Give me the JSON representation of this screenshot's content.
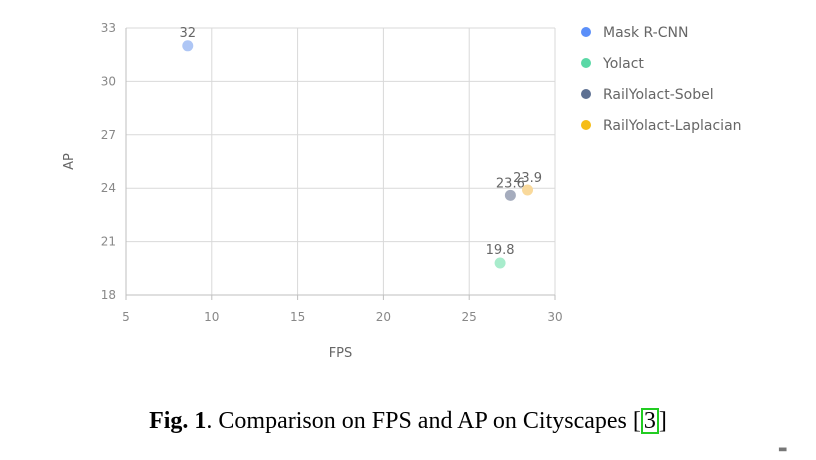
{
  "chart_data": {
    "type": "scatter",
    "title": "",
    "xlabel": "FPS",
    "ylabel": "AP",
    "xlim": [
      5,
      30
    ],
    "ylim": [
      18,
      33
    ],
    "xticks": [
      5,
      10,
      15,
      20,
      25,
      30
    ],
    "yticks": [
      18,
      21,
      24,
      27,
      30,
      33
    ],
    "grid": true,
    "legend_position": "right",
    "series": [
      {
        "name": "Mask R-CNN",
        "color": "#aec6f5",
        "legend_color": "#5b8ff9",
        "points": [
          {
            "x": 8.6,
            "y": 32,
            "label": "32"
          }
        ]
      },
      {
        "name": "Yolact",
        "color": "#a8eccc",
        "legend_color": "#5ad8a6",
        "points": [
          {
            "x": 26.8,
            "y": 19.8,
            "label": "19.8"
          }
        ]
      },
      {
        "name": "RailYolact-Sobel",
        "color": "#a5acbd",
        "legend_color": "#5d7092",
        "points": [
          {
            "x": 27.4,
            "y": 23.6,
            "label": "23.6"
          }
        ]
      },
      {
        "name": "RailYolact-Laplacian",
        "color": "#f9d99b",
        "legend_color": "#f6bd16",
        "points": [
          {
            "x": 28.4,
            "y": 23.9,
            "label": "23.9"
          }
        ]
      }
    ]
  },
  "caption": {
    "fig_number": "Fig. 1",
    "text_before": ". Comparison on FPS and AP on Cityscapes [",
    "citation": "3",
    "text_after": "]"
  },
  "corner_mark": "▬"
}
